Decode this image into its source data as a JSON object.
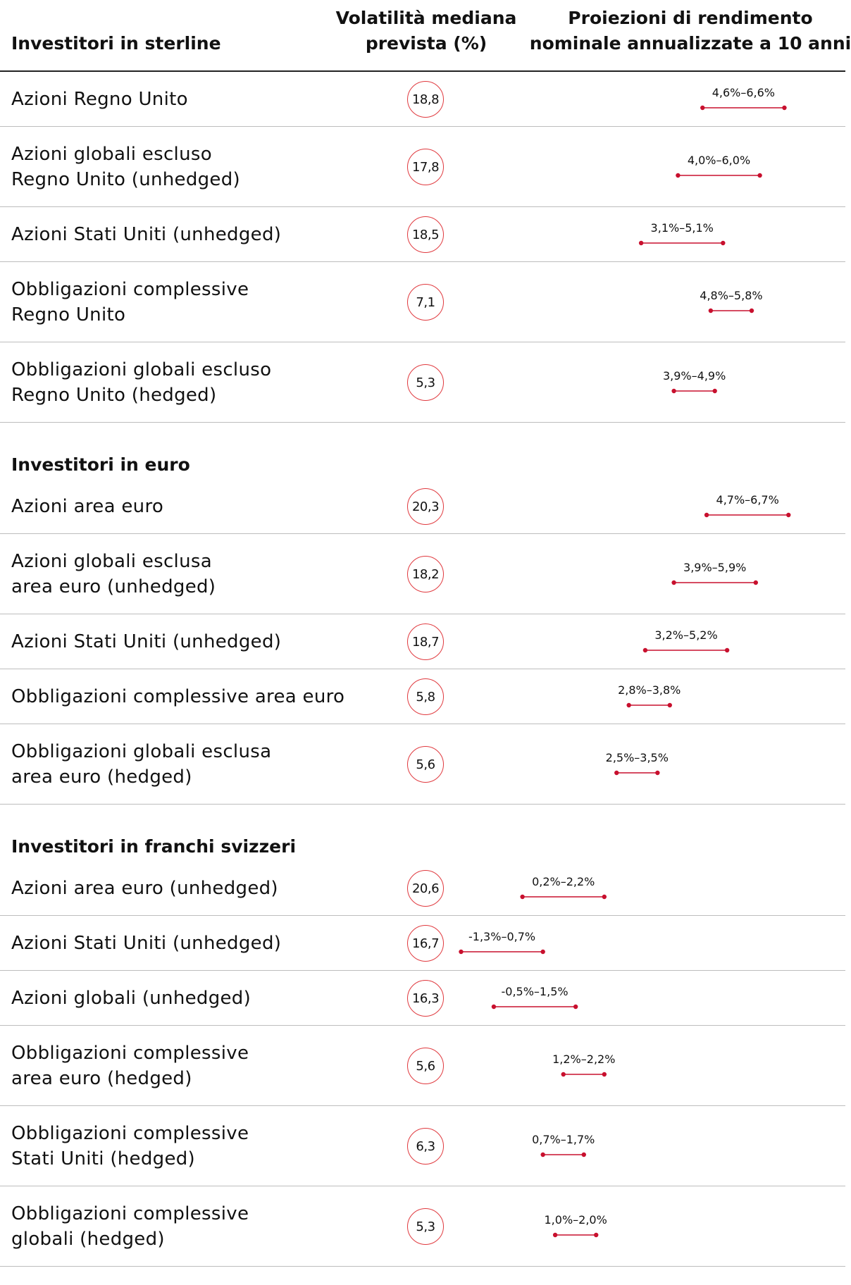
{
  "header": {
    "volatility": [
      "Volatilità mediana",
      "prevista (%)"
    ],
    "returns": [
      "Proiezioni di rendimento",
      "nominale annualizzate a 10 anni"
    ]
  },
  "groups": [
    {
      "title": "Investitori in sterline",
      "rows": [
        {
          "name": [
            "Azioni Regno Unito"
          ],
          "volatility": "18,8",
          "low": 4.6,
          "high": 6.6,
          "label": "4,6%–6,6%"
        },
        {
          "name": [
            "Azioni globali escluso",
            "Regno Unito (unhedged)"
          ],
          "volatility": "17,8",
          "low": 4.0,
          "high": 6.0,
          "label": "4,0%–6,0%"
        },
        {
          "name": [
            "Azioni Stati Uniti (unhedged)"
          ],
          "volatility": "18,5",
          "low": 3.1,
          "high": 5.1,
          "label": "3,1%–5,1%"
        },
        {
          "name": [
            "Obbligazioni complessive",
            "Regno Unito"
          ],
          "volatility": "7,1",
          "low": 4.8,
          "high": 5.8,
          "label": "4,8%–5,8%"
        },
        {
          "name": [
            "Obbligazioni globali escluso",
            "Regno Unito (hedged)"
          ],
          "volatility": "5,3",
          "low": 3.9,
          "high": 4.9,
          "label": "3,9%–4,9%"
        }
      ]
    },
    {
      "title": "Investitori in euro",
      "rows": [
        {
          "name": [
            "Azioni area euro"
          ],
          "volatility": "20,3",
          "low": 4.7,
          "high": 6.7,
          "label": "4,7%–6,7%"
        },
        {
          "name": [
            "Azioni globali esclusa",
            "area euro (unhedged)"
          ],
          "volatility": "18,2",
          "low": 3.9,
          "high": 5.9,
          "label": "3,9%–5,9%"
        },
        {
          "name": [
            "Azioni Stati Uniti (unhedged)"
          ],
          "volatility": "18,7",
          "low": 3.2,
          "high": 5.2,
          "label": "3,2%–5,2%"
        },
        {
          "name": [
            "Obbligazioni complessive area euro"
          ],
          "volatility": "5,8",
          "low": 2.8,
          "high": 3.8,
          "label": "2,8%–3,8%"
        },
        {
          "name": [
            "Obbligazioni globali esclusa",
            "area euro (hedged)"
          ],
          "volatility": "5,6",
          "low": 2.5,
          "high": 3.5,
          "label": "2,5%–3,5%"
        }
      ]
    },
    {
      "title": "Investitori in franchi svizzeri",
      "rows": [
        {
          "name": [
            "Azioni area euro (unhedged)"
          ],
          "volatility": "20,6",
          "low": 0.2,
          "high": 2.2,
          "label": "0,2%–2,2%"
        },
        {
          "name": [
            "Azioni Stati Uniti (unhedged)"
          ],
          "volatility": "16,7",
          "low": -1.3,
          "high": 0.7,
          "label": "-1,3%–0,7%"
        },
        {
          "name": [
            "Azioni globali (unhedged)"
          ],
          "volatility": "16,3",
          "low": -0.5,
          "high": 1.5,
          "label": "-0,5%–1,5%"
        },
        {
          "name": [
            "Obbligazioni complessive",
            "area euro (hedged)"
          ],
          "volatility": "5,6",
          "low": 1.2,
          "high": 2.2,
          "label": "1,2%–2,2%"
        },
        {
          "name": [
            "Obbligazioni complessive",
            "Stati Uniti (hedged)"
          ],
          "volatility": "6,3",
          "low": 0.7,
          "high": 1.7,
          "label": "0,7%–1,7%"
        },
        {
          "name": [
            "Obbligazioni complessive",
            "globali (hedged)"
          ],
          "volatility": "5,3",
          "low": 1.0,
          "high": 2.0,
          "label": "1,0%–2,0%"
        }
      ]
    }
  ]
}
